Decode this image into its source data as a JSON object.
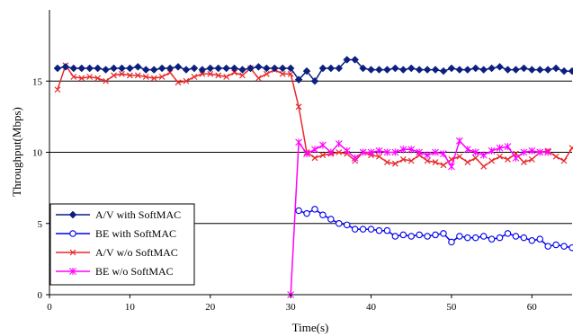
{
  "chart_data": {
    "type": "line",
    "xlabel": "Time(s)",
    "ylabel": "Throughput(Mbps)",
    "xlim": [
      0,
      65
    ],
    "ylim": [
      0,
      20
    ],
    "xticks": [
      0,
      10,
      20,
      30,
      40,
      50,
      60
    ],
    "yticks": [
      0,
      5,
      10,
      15
    ],
    "grid": "horizontal major lines at 5, 10, 15",
    "legend": "bottom-left",
    "series": [
      {
        "name": "A/V with SoftMAC",
        "color": "#0b1f80",
        "marker": "diamond",
        "points": [
          [
            1,
            15.9
          ],
          [
            2,
            16.0
          ],
          [
            3,
            15.9
          ],
          [
            4,
            15.9
          ],
          [
            5,
            15.9
          ],
          [
            6,
            15.9
          ],
          [
            7,
            15.8
          ],
          [
            8,
            15.9
          ],
          [
            9,
            15.9
          ],
          [
            10,
            15.9
          ],
          [
            11,
            16.0
          ],
          [
            12,
            15.8
          ],
          [
            13,
            15.8
          ],
          [
            14,
            15.9
          ],
          [
            15,
            15.9
          ],
          [
            16,
            16.0
          ],
          [
            17,
            15.8
          ],
          [
            18,
            15.9
          ],
          null,
          [
            19,
            15.8
          ],
          [
            20,
            15.9
          ],
          [
            21,
            15.9
          ],
          [
            22,
            15.9
          ],
          [
            23,
            15.9
          ],
          [
            24,
            15.8
          ],
          [
            25,
            15.9
          ],
          [
            26,
            16.0
          ],
          [
            27,
            15.9
          ],
          [
            28,
            15.9
          ],
          [
            29,
            15.9
          ],
          [
            30,
            15.9
          ],
          [
            31,
            15.1
          ],
          [
            32,
            15.7
          ],
          [
            33,
            15.0
          ],
          [
            34,
            15.9
          ],
          [
            35,
            15.9
          ],
          [
            36,
            15.9
          ],
          [
            37,
            16.5
          ],
          [
            38,
            16.5
          ],
          [
            39,
            15.9
          ],
          [
            40,
            15.8
          ],
          [
            41,
            15.8
          ],
          [
            42,
            15.8
          ],
          [
            43,
            15.9
          ],
          [
            44,
            15.8
          ],
          [
            45,
            15.9
          ],
          [
            46,
            15.8
          ],
          [
            47,
            15.8
          ],
          [
            48,
            15.8
          ],
          [
            49,
            15.7
          ],
          [
            50,
            15.9
          ],
          [
            51,
            15.8
          ],
          [
            52,
            15.8
          ],
          [
            53,
            15.9
          ],
          [
            54,
            15.8
          ],
          [
            55,
            15.9
          ],
          [
            56,
            16.0
          ],
          [
            57,
            15.8
          ],
          [
            58,
            15.8
          ],
          [
            59,
            15.9
          ],
          [
            60,
            15.8
          ],
          [
            61,
            15.8
          ],
          [
            62,
            15.8
          ],
          [
            63,
            15.9
          ],
          [
            64,
            15.7
          ],
          [
            65,
            15.7
          ]
        ]
      },
      {
        "name": "BE with SoftMAC",
        "color": "#0000ee",
        "marker": "circle",
        "points": [
          [
            31,
            5.9
          ],
          [
            32,
            5.7
          ],
          [
            33,
            6.0
          ],
          [
            34,
            5.6
          ],
          [
            35,
            5.3
          ],
          [
            36,
            5.0
          ],
          [
            37,
            4.9
          ],
          [
            38,
            4.6
          ],
          [
            39,
            4.6
          ],
          [
            40,
            4.6
          ],
          [
            41,
            4.5
          ],
          [
            42,
            4.5
          ],
          [
            43,
            4.1
          ],
          [
            44,
            4.2
          ],
          [
            45,
            4.1
          ],
          [
            46,
            4.2
          ],
          [
            47,
            4.1
          ],
          [
            48,
            4.2
          ],
          [
            49,
            4.3
          ],
          [
            50,
            3.7
          ],
          [
            51,
            4.1
          ],
          [
            52,
            4.0
          ],
          [
            53,
            4.0
          ],
          [
            54,
            4.1
          ],
          [
            55,
            3.9
          ],
          [
            56,
            4.0
          ],
          [
            57,
            4.3
          ],
          [
            58,
            4.1
          ],
          [
            59,
            4.0
          ],
          [
            60,
            3.8
          ],
          [
            61,
            3.9
          ],
          [
            62,
            3.4
          ],
          [
            63,
            3.5
          ],
          [
            64,
            3.4
          ],
          [
            65,
            3.3
          ]
        ]
      },
      {
        "name": "A/V w/o SoftMAC",
        "color": "#e8292a",
        "marker": "x",
        "points": [
          [
            1,
            14.4
          ],
          [
            2,
            16.1
          ],
          [
            3,
            15.3
          ],
          [
            4,
            15.2
          ],
          [
            5,
            15.3
          ],
          [
            6,
            15.2
          ],
          [
            7,
            15.0
          ],
          [
            8,
            15.4
          ],
          [
            9,
            15.5
          ],
          [
            10,
            15.4
          ],
          [
            11,
            15.4
          ],
          [
            12,
            15.3
          ],
          [
            13,
            15.2
          ],
          [
            14,
            15.3
          ],
          [
            15,
            15.6
          ],
          [
            16,
            14.9
          ],
          [
            17,
            15.0
          ],
          [
            18,
            15.3
          ],
          [
            19,
            15.5
          ],
          [
            20,
            15.5
          ],
          [
            21,
            15.4
          ],
          [
            22,
            15.3
          ],
          [
            23,
            15.6
          ],
          [
            24,
            15.4
          ],
          [
            25,
            15.9
          ],
          [
            26,
            15.2
          ],
          [
            27,
            15.5
          ],
          [
            28,
            15.8
          ],
          [
            29,
            15.5
          ],
          [
            30,
            15.5
          ],
          [
            31,
            13.2
          ],
          [
            32,
            10.0
          ],
          [
            33,
            9.6
          ],
          [
            34,
            9.8
          ],
          [
            35,
            9.9
          ],
          [
            36,
            10.0
          ],
          [
            37,
            9.9
          ],
          [
            38,
            9.4
          ],
          [
            39,
            10.0
          ],
          [
            40,
            9.8
          ],
          [
            41,
            9.7
          ],
          [
            42,
            9.3
          ],
          [
            43,
            9.2
          ],
          [
            44,
            9.5
          ],
          [
            45,
            9.4
          ],
          [
            46,
            9.8
          ],
          [
            47,
            9.4
          ],
          [
            48,
            9.3
          ],
          [
            49,
            9.1
          ],
          [
            50,
            9.5
          ],
          [
            51,
            9.7
          ],
          [
            52,
            9.3
          ],
          [
            53,
            9.6
          ],
          [
            54,
            9.0
          ],
          [
            55,
            9.4
          ],
          [
            56,
            9.7
          ],
          [
            57,
            9.5
          ],
          [
            58,
            9.9
          ],
          [
            59,
            9.3
          ],
          [
            60,
            9.5
          ],
          [
            61,
            10.0
          ],
          [
            62,
            10.1
          ],
          [
            63,
            9.7
          ],
          [
            64,
            9.4
          ],
          [
            65,
            10.3
          ]
        ]
      },
      {
        "name": "BE w/o SoftMAC",
        "color": "#ff00ff",
        "marker": "star",
        "points": [
          [
            30,
            0.0
          ],
          [
            31,
            10.7
          ],
          [
            32,
            9.9
          ],
          [
            33,
            10.2
          ],
          [
            34,
            10.5
          ],
          [
            35,
            10.0
          ],
          [
            36,
            10.6
          ],
          [
            37,
            10.1
          ],
          [
            38,
            9.6
          ],
          [
            39,
            10.0
          ],
          [
            40,
            10.0
          ],
          [
            41,
            10.1
          ],
          [
            42,
            10.0
          ],
          [
            43,
            10.0
          ],
          [
            44,
            10.2
          ],
          [
            45,
            10.2
          ],
          [
            46,
            10.0
          ],
          [
            47,
            9.8
          ],
          [
            48,
            10.0
          ],
          [
            49,
            9.9
          ],
          [
            50,
            9.0
          ],
          [
            51,
            10.8
          ],
          [
            52,
            10.2
          ],
          [
            53,
            10.0
          ],
          [
            54,
            9.8
          ],
          [
            55,
            10.1
          ],
          [
            56,
            10.3
          ],
          [
            57,
            10.4
          ],
          [
            58,
            9.6
          ],
          [
            59,
            10.0
          ],
          [
            60,
            10.1
          ],
          [
            61,
            10.0
          ],
          [
            62,
            10.0
          ]
        ]
      }
    ]
  }
}
